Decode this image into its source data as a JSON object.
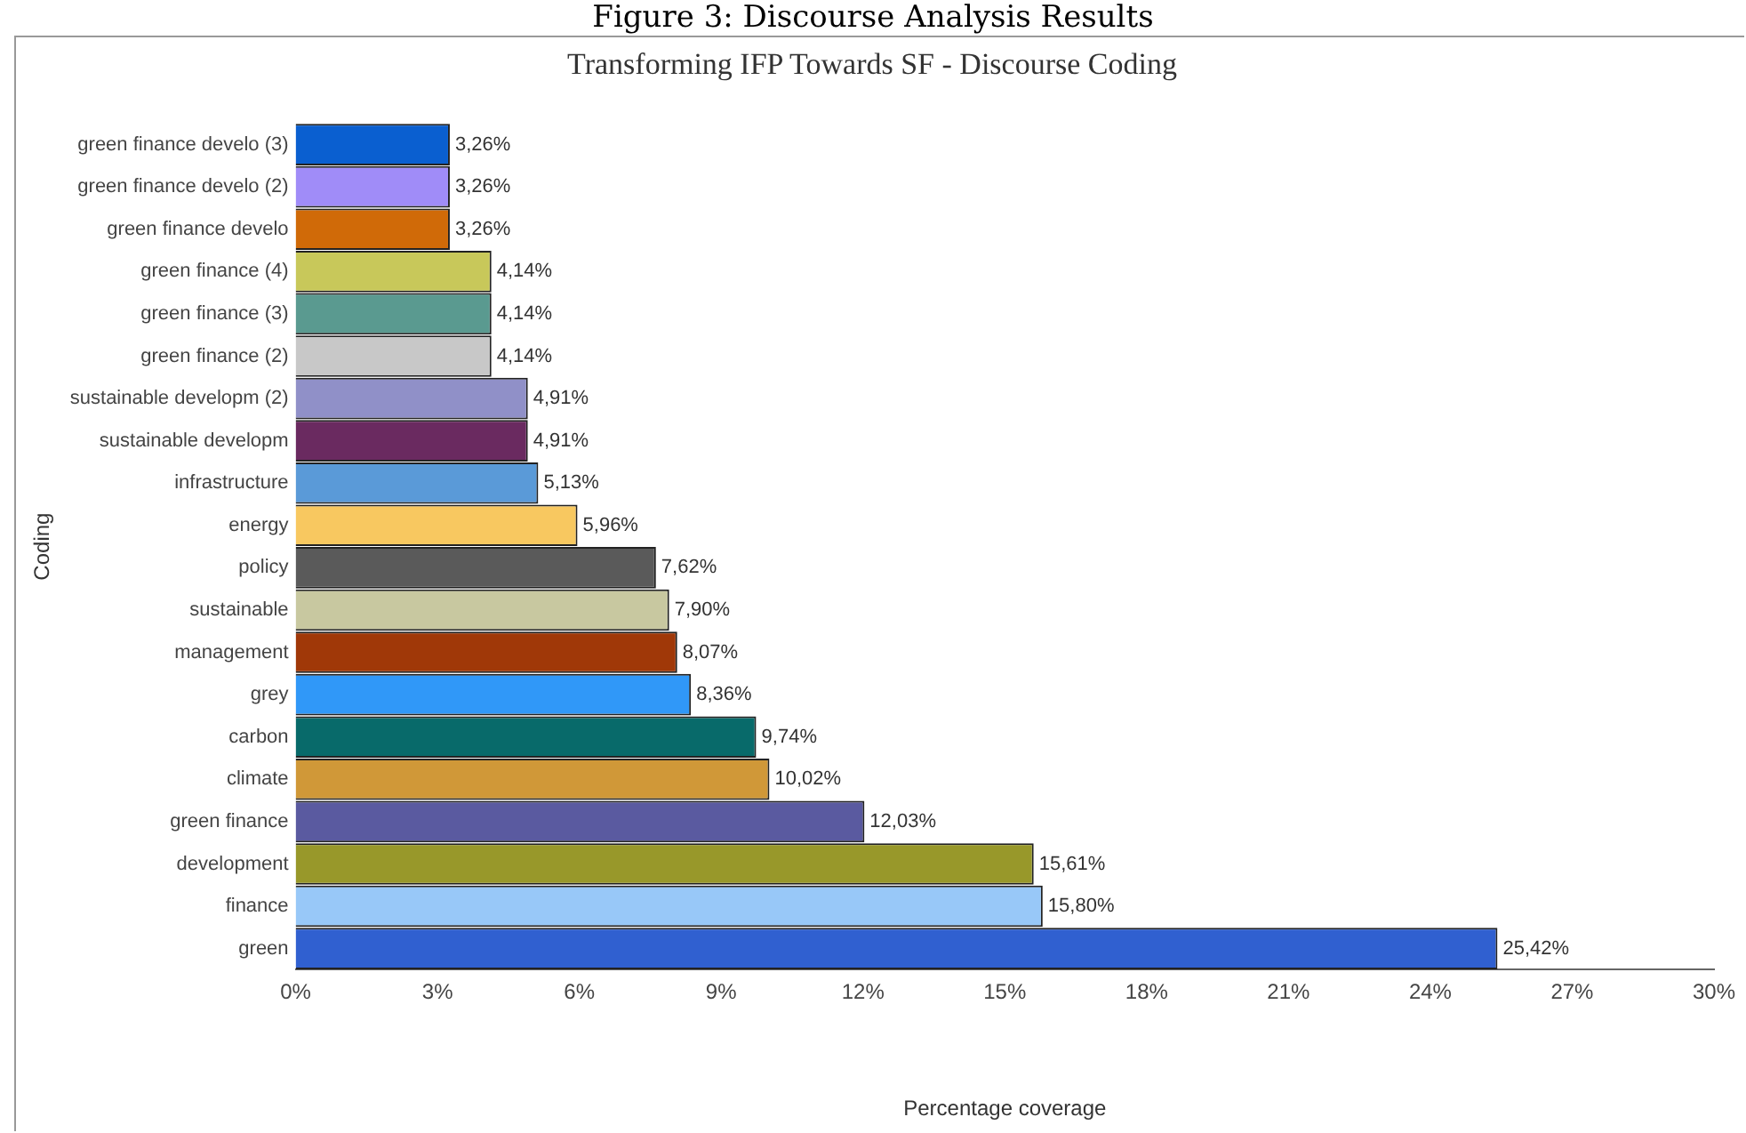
{
  "chart_data": {
    "type": "bar",
    "orientation": "horizontal",
    "title": "Transforming IFP Towards SF - Discourse Coding",
    "xlabel": "Percentage coverage",
    "ylabel": "Coding",
    "annotations": [
      "Figure 3: Discourse Analysis Results"
    ],
    "categories": [
      "green finance develo (3)",
      "green finance develo (2)",
      "green finance develo",
      "green finance (4)",
      "green finance (3)",
      "green finance (2)",
      "sustainable developm (2)",
      "sustainable developm",
      "infrastructure",
      "energy",
      "policy",
      "sustainable",
      "management",
      "grey",
      "carbon",
      "climate",
      "green finance",
      "development",
      "finance",
      "green"
    ],
    "values": [
      3.26,
      3.26,
      3.26,
      4.14,
      4.14,
      4.14,
      4.91,
      4.91,
      5.13,
      5.96,
      7.62,
      7.9,
      8.07,
      8.36,
      9.74,
      10.02,
      12.03,
      15.61,
      15.8,
      25.42
    ],
    "value_labels": [
      "3,26%",
      "3,26%",
      "3,26%",
      "4,14%",
      "4,14%",
      "4,14%",
      "4,91%",
      "4,91%",
      "5,13%",
      "5,96%",
      "7,62%",
      "7,90%",
      "8,07%",
      "8,36%",
      "9,74%",
      "10,02%",
      "12,03%",
      "15,61%",
      "15,80%",
      "25,42%"
    ],
    "colors": [
      "#0a5fd0",
      "#a08cf8",
      "#d06a08",
      "#c8c85a",
      "#5a9a90",
      "#c8c8c8",
      "#9090c8",
      "#6a2a60",
      "#5a9ad8",
      "#f8c860",
      "#5a5a5a",
      "#c8c8a0",
      "#a03808",
      "#3098f8",
      "#086a6a",
      "#d09838",
      "#5a5aa0",
      "#98982a",
      "#98c8f8",
      "#3060d0"
    ],
    "xlim": [
      0,
      30
    ],
    "xticks": [
      {
        "value": 0,
        "label": "0%"
      },
      {
        "value": 3,
        "label": "3%"
      },
      {
        "value": 6,
        "label": "6%"
      },
      {
        "value": 9,
        "label": "9%"
      },
      {
        "value": 12,
        "label": "12%"
      },
      {
        "value": 15,
        "label": "15%"
      },
      {
        "value": 18,
        "label": "18%"
      },
      {
        "value": 21,
        "label": "21%"
      },
      {
        "value": 24,
        "label": "24%"
      },
      {
        "value": 27,
        "label": "27%"
      },
      {
        "value": 30,
        "label": "30%"
      }
    ],
    "grid": false,
    "legend": false
  }
}
